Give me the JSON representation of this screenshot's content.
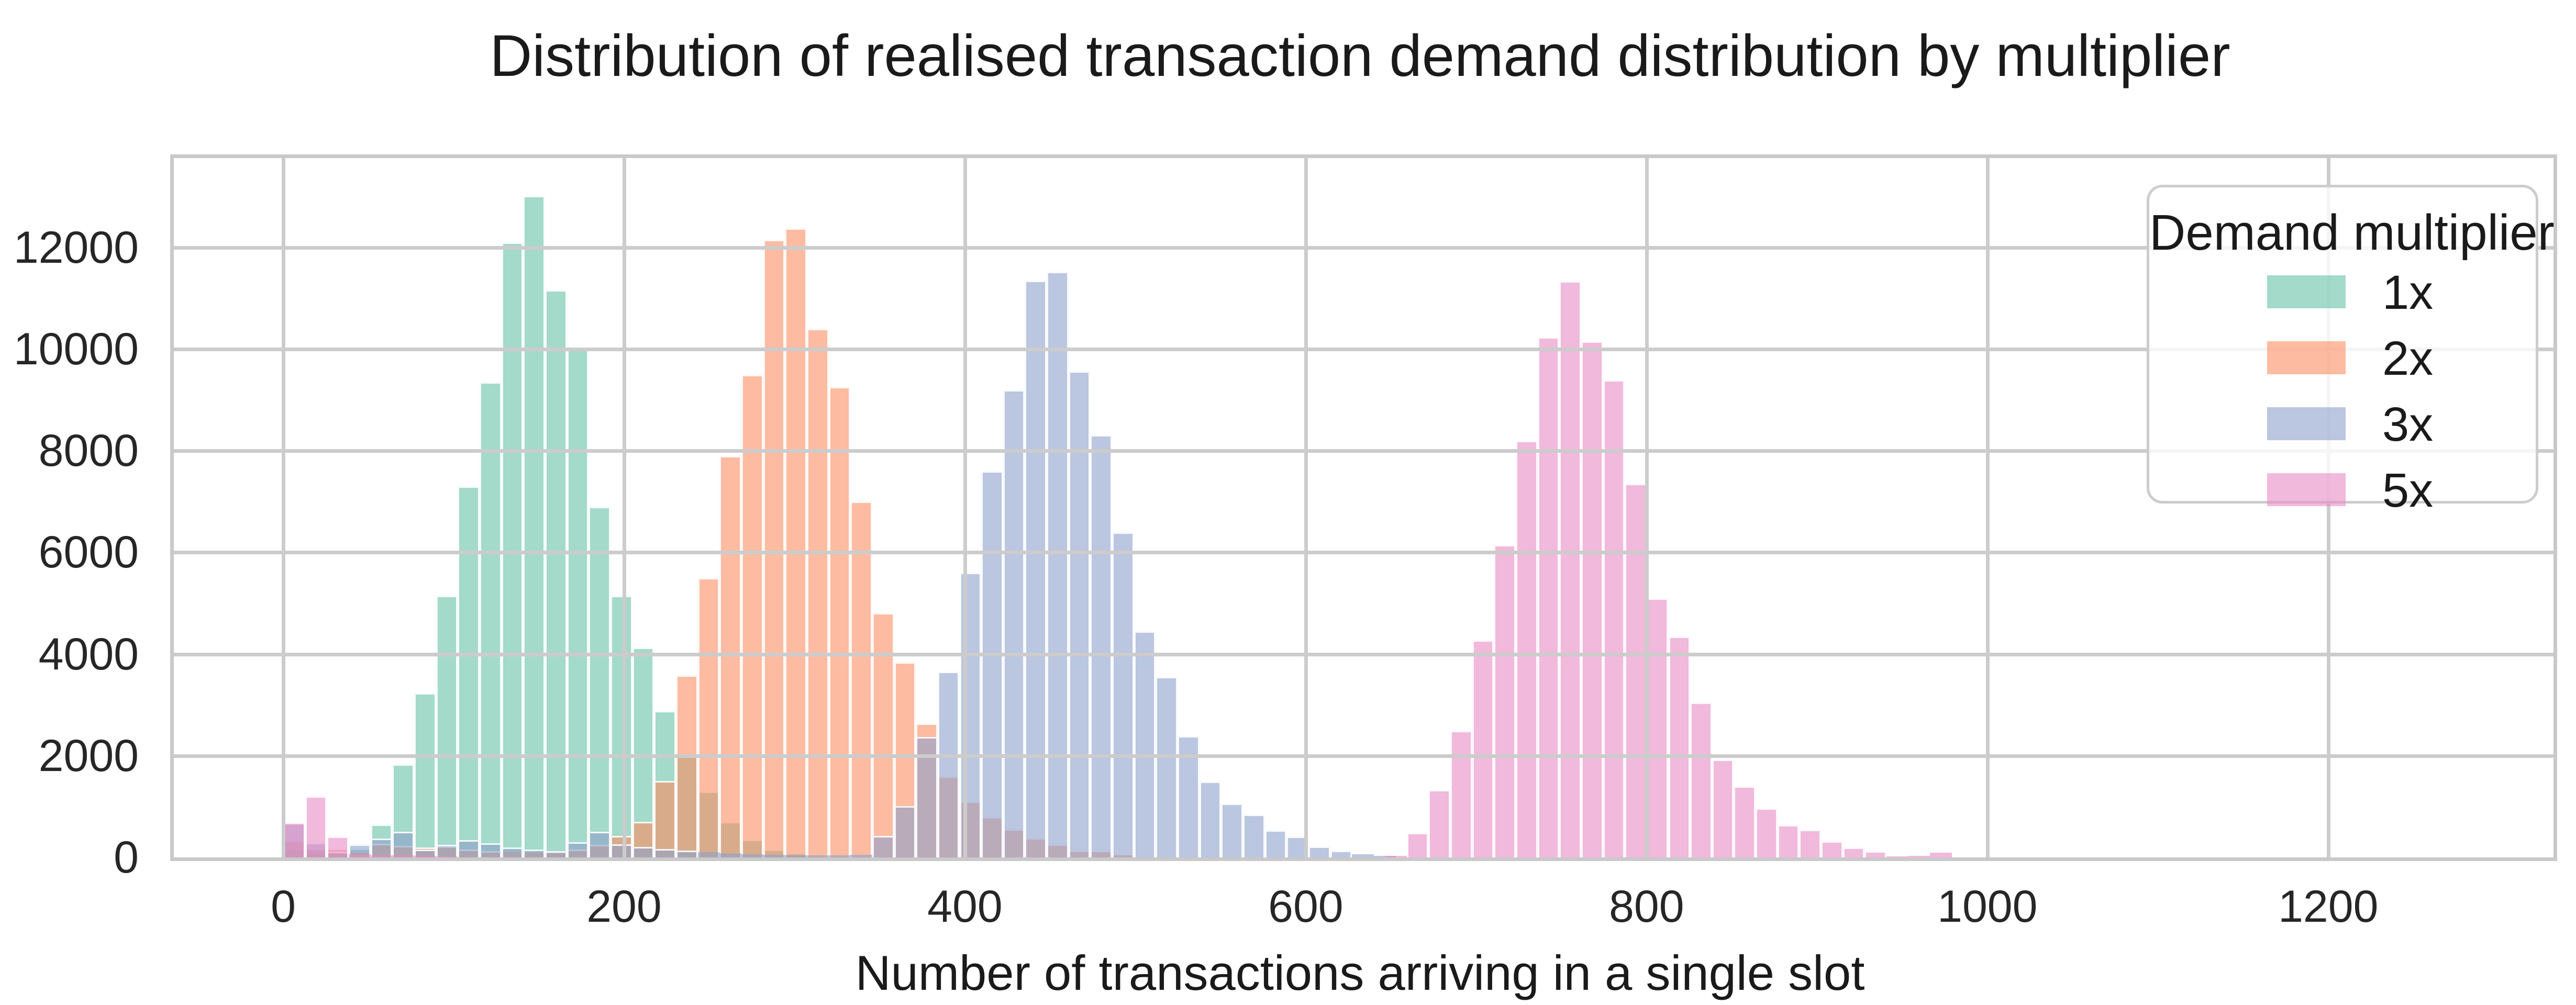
{
  "title": "Distribution of realised transaction demand distribution by multiplier",
  "x_axis": {
    "label": "Number of transactions arriving in a single slot",
    "ticks": [
      0,
      200,
      400,
      600,
      800,
      1000,
      1200
    ]
  },
  "y_axis": {
    "ticks": [
      0,
      2000,
      4000,
      6000,
      8000,
      10000,
      12000
    ]
  },
  "legend": {
    "title": "Demand multiplier",
    "entries": [
      {
        "label": "1x",
        "color": "#66c2a5"
      },
      {
        "label": "2x",
        "color": "#fc8d62"
      },
      {
        "label": "3x",
        "color": "#8da0cb"
      },
      {
        "label": "5x",
        "color": "#e78ac3"
      }
    ]
  },
  "colors": {
    "grid": "#cccccc",
    "spine": "#c9c9c9",
    "text": "#1a1a1a",
    "bar_alpha": 0.6
  },
  "chart_data": {
    "type": "bar",
    "subtype": "overlapping-histograms",
    "title": "Distribution of realised transaction demand distribution by multiplier",
    "xlabel": "Number of transactions arriving in a single slot",
    "ylabel": "",
    "xlim": [
      -64,
      1332
    ],
    "ylim": [
      0,
      13758
    ],
    "grid": true,
    "legend_position": "upper right",
    "bin_width": 12.8,
    "alpha": 0.6,
    "series": [
      {
        "name": "1x",
        "color": "#66c2a5",
        "bins": [
          [
            6.4,
            150
          ],
          [
            19.2,
            80
          ],
          [
            32,
            60
          ],
          [
            44.8,
            170
          ],
          [
            57.6,
            650
          ],
          [
            70.4,
            1830
          ],
          [
            83.2,
            3230
          ],
          [
            96,
            5150
          ],
          [
            108.8,
            7300
          ],
          [
            121.6,
            9350
          ],
          [
            134.4,
            12100
          ],
          [
            147.2,
            13020
          ],
          [
            160,
            11160
          ],
          [
            172.8,
            9990
          ],
          [
            185.6,
            6900
          ],
          [
            198.4,
            5150
          ],
          [
            211.2,
            4130
          ],
          [
            224,
            2880
          ],
          [
            236.8,
            2000
          ],
          [
            249.6,
            1300
          ],
          [
            262.4,
            700
          ],
          [
            275.2,
            350
          ],
          [
            288,
            150
          ],
          [
            300.8,
            60
          ]
        ]
      },
      {
        "name": "2x",
        "color": "#fc8d62",
        "bins": [
          [
            6.4,
            340
          ],
          [
            19.2,
            170
          ],
          [
            32,
            170
          ],
          [
            44.8,
            90
          ],
          [
            57.6,
            270
          ],
          [
            70.4,
            230
          ],
          [
            83.2,
            200
          ],
          [
            96,
            220
          ],
          [
            108.8,
            150
          ],
          [
            121.6,
            120
          ],
          [
            134.4,
            100
          ],
          [
            147.2,
            90
          ],
          [
            160,
            110
          ],
          [
            172.8,
            150
          ],
          [
            185.6,
            250
          ],
          [
            198.4,
            420
          ],
          [
            211.2,
            700
          ],
          [
            224,
            1500
          ],
          [
            236.8,
            3580
          ],
          [
            249.6,
            5500
          ],
          [
            262.4,
            7900
          ],
          [
            275.2,
            9500
          ],
          [
            288,
            12150
          ],
          [
            300.8,
            12380
          ],
          [
            313.6,
            10400
          ],
          [
            326.4,
            9260
          ],
          [
            339.2,
            7000
          ],
          [
            352,
            4810
          ],
          [
            364.8,
            3840
          ],
          [
            377.6,
            2640
          ],
          [
            390.4,
            1600
          ],
          [
            403.2,
            1100
          ],
          [
            416,
            790
          ],
          [
            428.8,
            560
          ],
          [
            441.6,
            380
          ],
          [
            454.4,
            260
          ],
          [
            467.2,
            130
          ],
          [
            480,
            100
          ],
          [
            492.8,
            40
          ]
        ]
      },
      {
        "name": "3x",
        "color": "#8da0cb",
        "bins": [
          [
            6.4,
            665
          ],
          [
            19.2,
            290
          ],
          [
            32,
            110
          ],
          [
            44.8,
            255
          ],
          [
            57.6,
            375
          ],
          [
            70.4,
            500
          ],
          [
            83.2,
            150
          ],
          [
            96,
            250
          ],
          [
            108.8,
            340
          ],
          [
            121.6,
            280
          ],
          [
            134.4,
            200
          ],
          [
            147.2,
            150
          ],
          [
            160,
            120
          ],
          [
            172.8,
            300
          ],
          [
            185.6,
            500
          ],
          [
            198.4,
            260
          ],
          [
            211.2,
            210
          ],
          [
            224,
            160
          ],
          [
            236.8,
            130
          ],
          [
            249.6,
            100
          ],
          [
            262.4,
            80
          ],
          [
            275.2,
            60
          ],
          [
            288,
            50
          ],
          [
            300.8,
            40
          ],
          [
            313.6,
            40
          ],
          [
            326.4,
            40
          ],
          [
            339.2,
            50
          ],
          [
            352,
            425
          ],
          [
            364.8,
            1010
          ],
          [
            377.6,
            2370
          ],
          [
            390.4,
            3660
          ],
          [
            403.2,
            5600
          ],
          [
            416,
            7600
          ],
          [
            428.8,
            9200
          ],
          [
            441.6,
            11350
          ],
          [
            454.4,
            11520
          ],
          [
            467.2,
            9570
          ],
          [
            480,
            8310
          ],
          [
            492.8,
            6400
          ],
          [
            505.6,
            4450
          ],
          [
            518.4,
            3550
          ],
          [
            531.2,
            2385
          ],
          [
            544,
            1490
          ],
          [
            556.8,
            1060
          ],
          [
            569.6,
            840
          ],
          [
            582.4,
            540
          ],
          [
            595.2,
            410
          ],
          [
            608,
            220
          ],
          [
            620.8,
            130
          ],
          [
            633.6,
            60
          ],
          [
            646.4,
            30
          ]
        ]
      },
      {
        "name": "5x",
        "color": "#e78ac3",
        "bins": [
          [
            6.4,
            690
          ],
          [
            19.2,
            1210
          ],
          [
            32,
            415
          ],
          [
            44.8,
            60
          ],
          [
            57.6,
            45
          ],
          [
            70.4,
            40
          ],
          [
            83.2,
            30
          ],
          [
            96,
            25
          ],
          [
            652.8,
            30
          ],
          [
            665.6,
            485
          ],
          [
            678.4,
            1330
          ],
          [
            691.2,
            2490
          ],
          [
            704,
            4270
          ],
          [
            716.8,
            6150
          ],
          [
            729.6,
            8200
          ],
          [
            742.4,
            10240
          ],
          [
            755.2,
            11340
          ],
          [
            768,
            10150
          ],
          [
            780.8,
            9390
          ],
          [
            793.6,
            7350
          ],
          [
            806.4,
            5100
          ],
          [
            819.2,
            4350
          ],
          [
            832,
            3050
          ],
          [
            844.8,
            1930
          ],
          [
            857.6,
            1400
          ],
          [
            870.4,
            965
          ],
          [
            883.2,
            640
          ],
          [
            896,
            545
          ],
          [
            908.8,
            320
          ],
          [
            921.6,
            195
          ],
          [
            934.4,
            125
          ],
          [
            947.2,
            25
          ],
          [
            960,
            30
          ],
          [
            972.8,
            90
          ]
        ]
      }
    ]
  }
}
